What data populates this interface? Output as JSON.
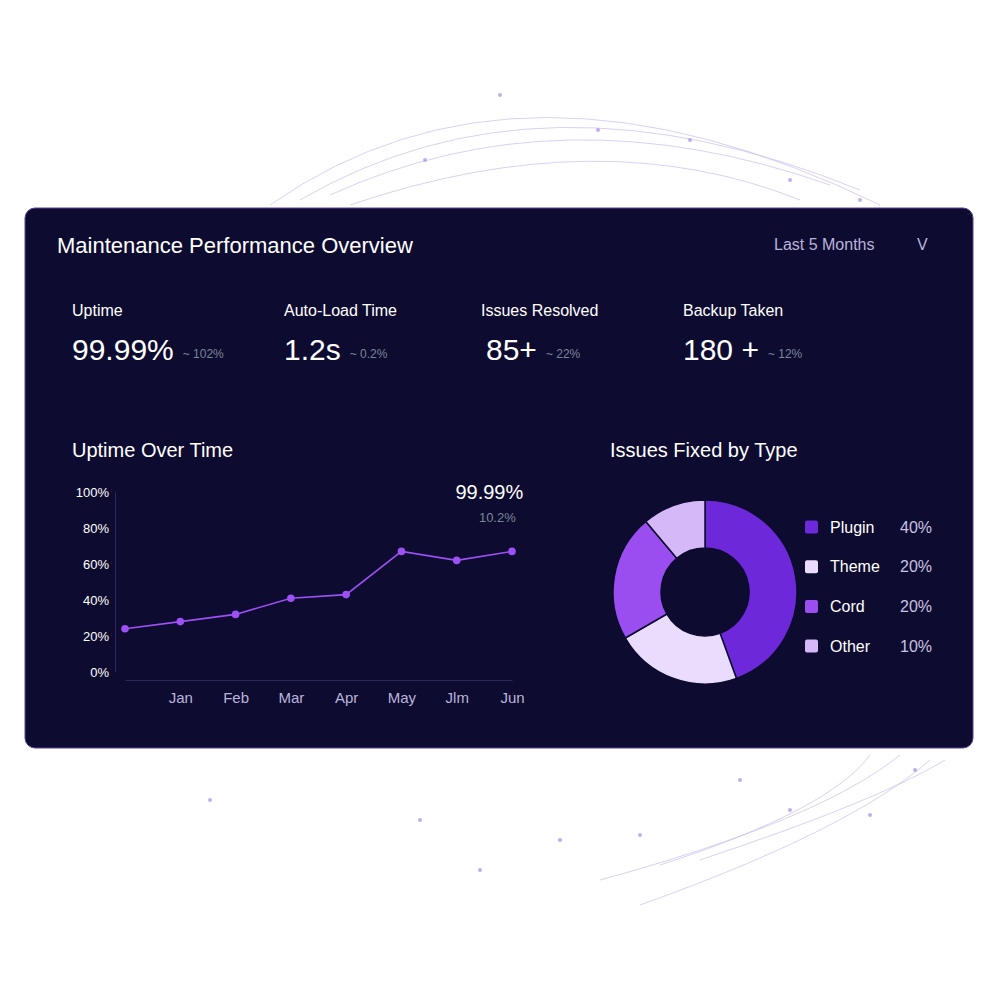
{
  "header": {
    "title": "Maintenance Performance Overview",
    "period": "Last 5 Months",
    "dropdown": "V"
  },
  "kpis": [
    {
      "label": "Uptime",
      "value": "99.99%",
      "change": "~ 102%"
    },
    {
      "label": "Auto-Load Time",
      "value": "1.2s",
      "change": "~ 0.2%"
    },
    {
      "label": "Issues Resolved",
      "value": "85+",
      "change": "~ 22%"
    },
    {
      "label": "Backup Taken",
      "value": "180 +",
      "change": "~ 12%"
    }
  ],
  "chart_data": [
    {
      "type": "line",
      "title": "Uptime Over Time",
      "categories": [
        null,
        "Jan",
        "Feb",
        "Mar",
        "Apr",
        "May",
        "Jlm",
        "Jun"
      ],
      "values": [
        24,
        28,
        32,
        41,
        43,
        67,
        62,
        67
      ],
      "color": "#9d50f5",
      "marker": "circle",
      "ylim": [
        0,
        100
      ],
      "yticks": [
        {
          "value": 0,
          "label": "0%"
        },
        {
          "value": 20,
          "label": "20%"
        },
        {
          "value": 40,
          "label": "40%"
        },
        {
          "value": 60,
          "label": "60%"
        },
        {
          "value": 80,
          "label": "80%"
        },
        {
          "value": 100,
          "label": "100%"
        }
      ],
      "grid": false,
      "annotations": [
        "99.99%",
        "10.2%"
      ]
    },
    {
      "type": "pie",
      "title": "Issues Fixed by Type",
      "categories": [
        "Plugin",
        "Theme",
        "Cord",
        "Other"
      ],
      "values": [
        40,
        20,
        20,
        10
      ],
      "value_labels": [
        "40%",
        "20%",
        "20%",
        "10%"
      ],
      "colors": [
        "#6d28d9",
        "#eadcfc",
        "#9b4ef0",
        "#d4b8f7"
      ],
      "legend": "right"
    }
  ]
}
